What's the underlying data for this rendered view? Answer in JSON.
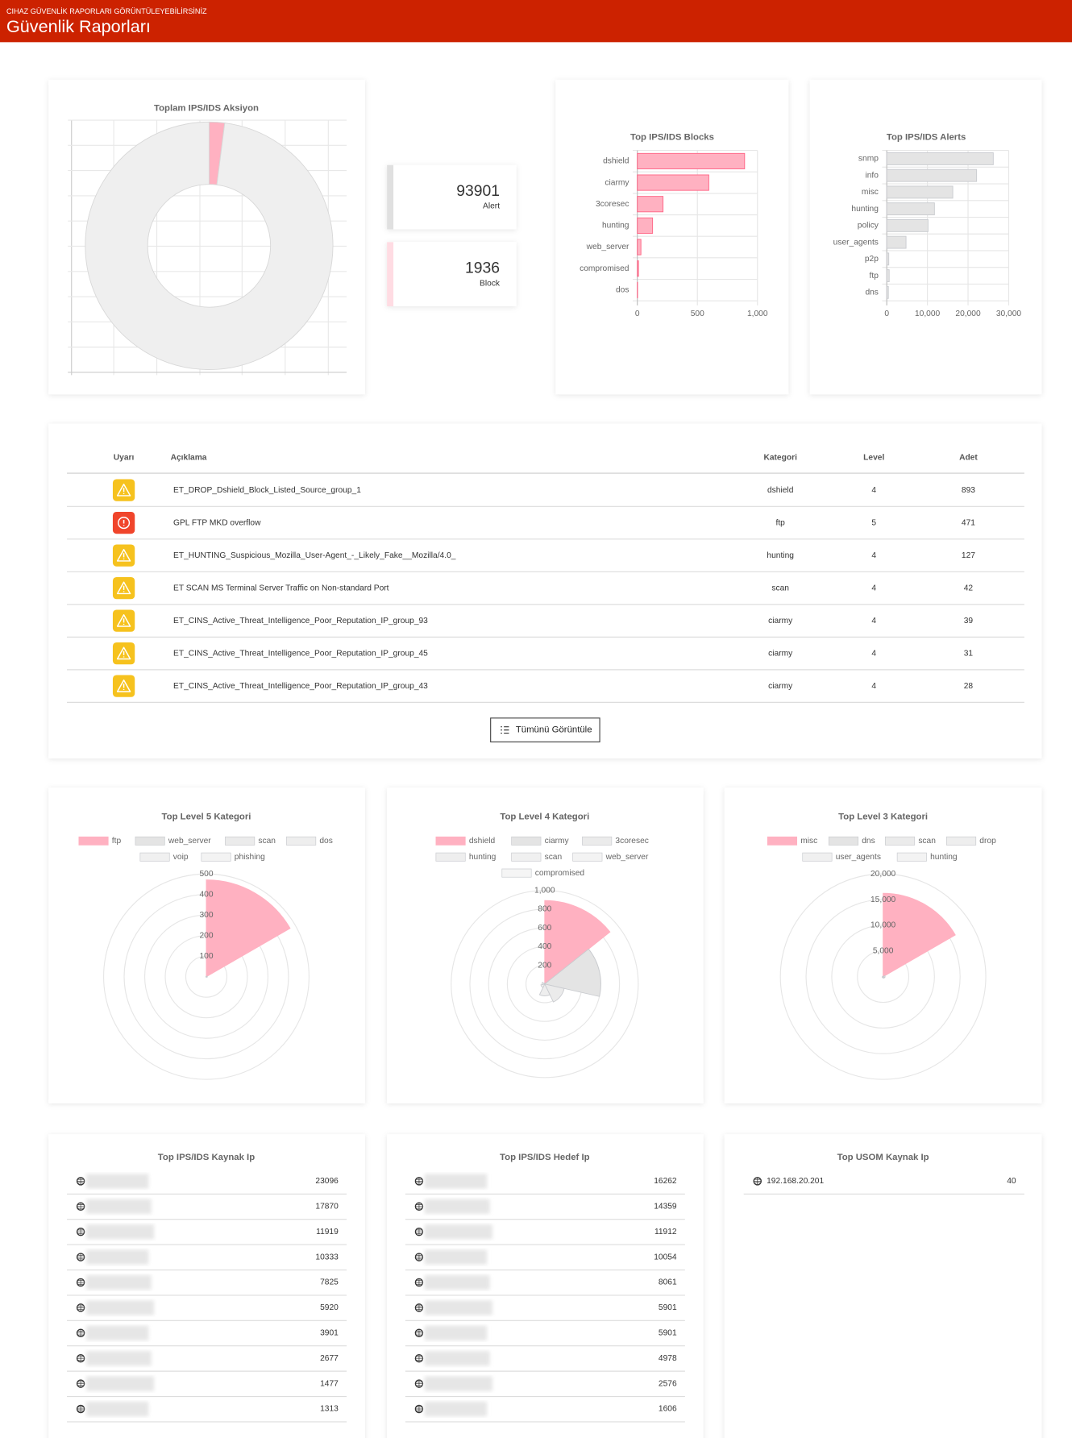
{
  "header": {
    "subtitle": "CIHAZ GÜVENLİK RAPORLARI GÖRÜNTÜLEYEBİLİRSİNİZ",
    "title": "Güvenlik Raporları"
  },
  "stats": [
    {
      "value": 93901,
      "label": "Alert",
      "color": "#e0e0e0"
    },
    {
      "value": 1936,
      "label": "Block",
      "color": "#ffdce3"
    }
  ],
  "chart_data": [
    {
      "type": "doughnut",
      "title": "Toplam IPS/IDS Aksiyon",
      "grid": true,
      "colors": [
        "#efefef",
        "#ffb1c1"
      ]
    },
    {
      "type": "bar",
      "title": "Top IPS/IDS Blocks",
      "categories": [
        "dshield",
        "ciarmy",
        "3coresec",
        "hunting",
        "web_server",
        "compromised",
        "dos"
      ],
      "values": [
        893,
        595,
        214,
        127,
        30,
        10,
        2
      ],
      "color": "#ffb1c1",
      "border_color": "#ff6384",
      "xlim": [
        0,
        1000
      ],
      "xticks": [
        0,
        500,
        {
          "value": 1000,
          "label": "1,000"
        }
      ],
      "grid": true
    },
    {
      "type": "bar",
      "title": "Top IPS/IDS Alerts",
      "categories": [
        "snmp",
        "info",
        "misc",
        "hunting",
        "policy",
        "user_agents",
        "p2p",
        "ftp",
        "dns"
      ],
      "values": [
        26200,
        22100,
        16240,
        11730,
        10150,
        4740,
        500,
        600,
        400
      ],
      "color": "#e4e4e4",
      "border_color": "#c9cbcf",
      "xlim": [
        0,
        30000
      ],
      "xticks": [
        0,
        {
          "value": 10000,
          "label": "10,000"
        },
        {
          "value": 20000,
          "label": "20,000"
        },
        {
          "value": 30000,
          "label": "30,000"
        }
      ],
      "grid": true
    },
    {
      "type": "polarArea",
      "title": "Top Level 5 Kategori",
      "categories": [
        "ftp",
        "web_server",
        "scan",
        "dos",
        "voip",
        "phishing"
      ],
      "values": [
        471,
        5,
        3,
        2,
        1,
        1
      ],
      "colors": [
        "#ffb1c1",
        "#e4e4e4",
        "#ebebeb",
        "#eeeeee",
        "#f0f0f0",
        "#f3f3f3"
      ],
      "rlim": [
        0,
        500
      ],
      "rticks": [
        100,
        200,
        300,
        400,
        500
      ]
    },
    {
      "type": "polarArea",
      "title": "Top Level 4 Kategori",
      "categories": [
        "dshield",
        "ciarmy",
        "3coresec",
        "hunting",
        "scan",
        "web_server",
        "compromised"
      ],
      "values": [
        893,
        600,
        214,
        127,
        42,
        30,
        10
      ],
      "colors": [
        "#ffb1c1",
        "#e4e4e4",
        "#ebebeb",
        "#eeeeee",
        "#f0f0f0",
        "#f3f3f3",
        "#f5f5f5"
      ],
      "rlim": [
        0,
        1000
      ],
      "rticks": [
        200,
        400,
        600,
        800,
        {
          "value": 1000,
          "label": "1,000"
        }
      ]
    },
    {
      "type": "polarArea",
      "title": "Top Level 3 Kategori",
      "categories": [
        "misc",
        "dns",
        "scan",
        "drop",
        "user_agents",
        "hunting"
      ],
      "values": [
        16240,
        400,
        300,
        200,
        150,
        100
      ],
      "colors": [
        "#ffb1c1",
        "#e4e4e4",
        "#ebebeb",
        "#eeeeee",
        "#f0f0f0",
        "#f3f3f3"
      ],
      "rlim": [
        0,
        20000
      ],
      "rticks": [
        {
          "value": 5000,
          "label": "5,000"
        },
        {
          "value": 10000,
          "label": "10,000"
        },
        {
          "value": 15000,
          "label": "15,000"
        },
        {
          "value": 20000,
          "label": "20,000"
        }
      ]
    }
  ],
  "table": {
    "headers": [
      "Uyarı",
      "Açıklama",
      "Kategori",
      "Level",
      "Adet"
    ],
    "rows": [
      {
        "icon": "warning",
        "cells": [
          "ET_DROP_Dshield_Block_Listed_Source_group_1",
          "dshield",
          4,
          893
        ]
      },
      {
        "icon": "error",
        "cells": [
          "GPL FTP MKD overflow",
          "ftp",
          5,
          471
        ]
      },
      {
        "icon": "warning",
        "cells": [
          "ET_HUNTING_Suspicious_Mozilla_User-Agent_-_Likely_Fake__Mozilla/4.0_",
          "hunting",
          4,
          127
        ]
      },
      {
        "icon": "warning",
        "cells": [
          "ET SCAN MS Terminal Server Traffic on Non-standard Port",
          "scan",
          4,
          42
        ]
      },
      {
        "icon": "warning",
        "cells": [
          "ET_CINS_Active_Threat_Intelligence_Poor_Reputation_IP_group_93",
          "ciarmy",
          4,
          39
        ]
      },
      {
        "icon": "warning",
        "cells": [
          "ET_CINS_Active_Threat_Intelligence_Poor_Reputation_IP_group_45",
          "ciarmy",
          4,
          31
        ]
      },
      {
        "icon": "warning",
        "cells": [
          "ET_CINS_Active_Threat_Intelligence_Poor_Reputation_IP_group_43",
          "ciarmy",
          4,
          28
        ]
      }
    ],
    "button": "Tümünü Görüntüle"
  },
  "ip_lists": [
    {
      "title": "Top IPS/IDS Kaynak Ip",
      "rows": [
        {
          "value": 23096
        },
        {
          "value": 17870
        },
        {
          "value": 11919
        },
        {
          "value": 10333
        },
        {
          "value": 7825
        },
        {
          "value": 5920
        },
        {
          "value": 3901
        },
        {
          "value": 2677
        },
        {
          "value": 1477
        },
        {
          "value": 1313
        }
      ]
    },
    {
      "title": "Top IPS/IDS Hedef Ip",
      "rows": [
        {
          "value": 16262
        },
        {
          "value": 14359
        },
        {
          "value": 11912
        },
        {
          "value": 10054
        },
        {
          "value": 8061
        },
        {
          "value": 5901
        },
        {
          "value": 5901
        },
        {
          "value": 4978
        },
        {
          "value": 2576
        },
        {
          "value": 1606
        }
      ]
    },
    {
      "title": "Top USOM Kaynak Ip",
      "rows": [
        {
          "ip": "192.168.20.201",
          "value": 40
        }
      ]
    }
  ]
}
